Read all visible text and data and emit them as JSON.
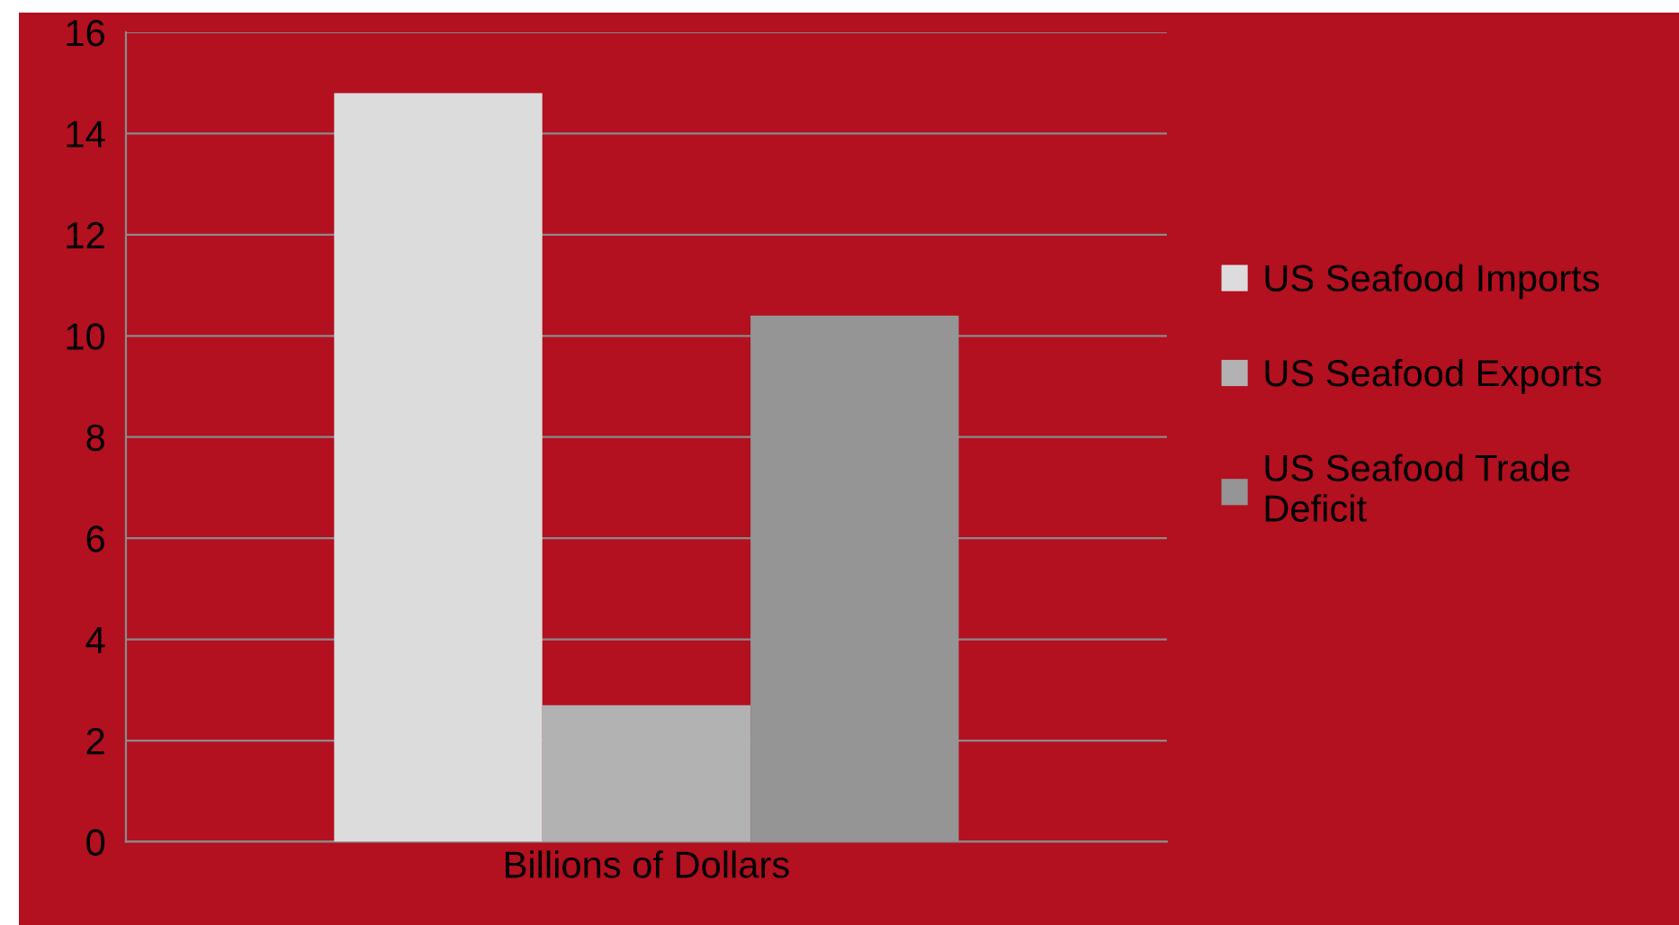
{
  "chart_data": {
    "type": "bar",
    "categories": [
      "Billions of Dollars"
    ],
    "series": [
      {
        "name": "US Seafood Imports",
        "color": "#dcdcdc",
        "values": [
          14.8
        ]
      },
      {
        "name": "US Seafood Exports",
        "color": "#b2b2b2",
        "values": [
          2.7
        ]
      },
      {
        "name": "US Seafood Trade Deficit",
        "color": "#959595",
        "values": [
          10.4
        ]
      }
    ],
    "ylim": [
      0,
      16
    ],
    "yticks": [
      0,
      2,
      4,
      6,
      8,
      10,
      12,
      14,
      16
    ],
    "grid": "y",
    "legend": "right"
  }
}
